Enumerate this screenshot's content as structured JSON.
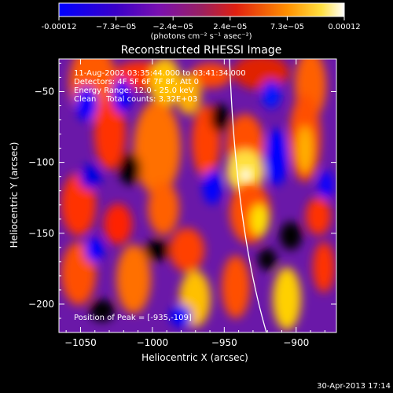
{
  "chart_data": {
    "type": "heatmap",
    "title": "Reconstructed RHESSI Image",
    "xlabel": "Heliocentric X (arcsec)",
    "ylabel": "Heliocentric Y (arcsec)",
    "xlim": [
      -1065,
      -872
    ],
    "ylim": [
      -220,
      -27
    ],
    "xticks": [
      -1050,
      -1000,
      -950,
      -900
    ],
    "yticks": [
      -50,
      -100,
      -150,
      -200
    ],
    "colorbar": {
      "ticks": [
        "-0.00012",
        "−7.3e−05",
        "−2.4e−05",
        "2.4e−05",
        "7.3e−05",
        "0.00012"
      ],
      "range": [
        -0.00012,
        0.00012
      ],
      "units": "(photons cm⁻² s⁻¹ asec⁻²)",
      "colors": [
        "#0000ff",
        "#6a00c0",
        "#8a2a9a",
        "#ff3000",
        "#ff9a00",
        "#ffffff"
      ]
    },
    "annotations": [
      "11-Aug-2002 03:35:44.000 to 03:41:34.000",
      "Detectors: 4F 5F 6F 7F 8F, Att 0",
      "Energy Range: 12.0 - 25.0 keV",
      "Clean    Total counts: 3.32E+03"
    ],
    "peak_label": "Position of Peak = [-935,-109]",
    "peak": [
      -935,
      -109
    ],
    "footer": "30-Apr-2013 17:14",
    "limb": "white line"
  }
}
